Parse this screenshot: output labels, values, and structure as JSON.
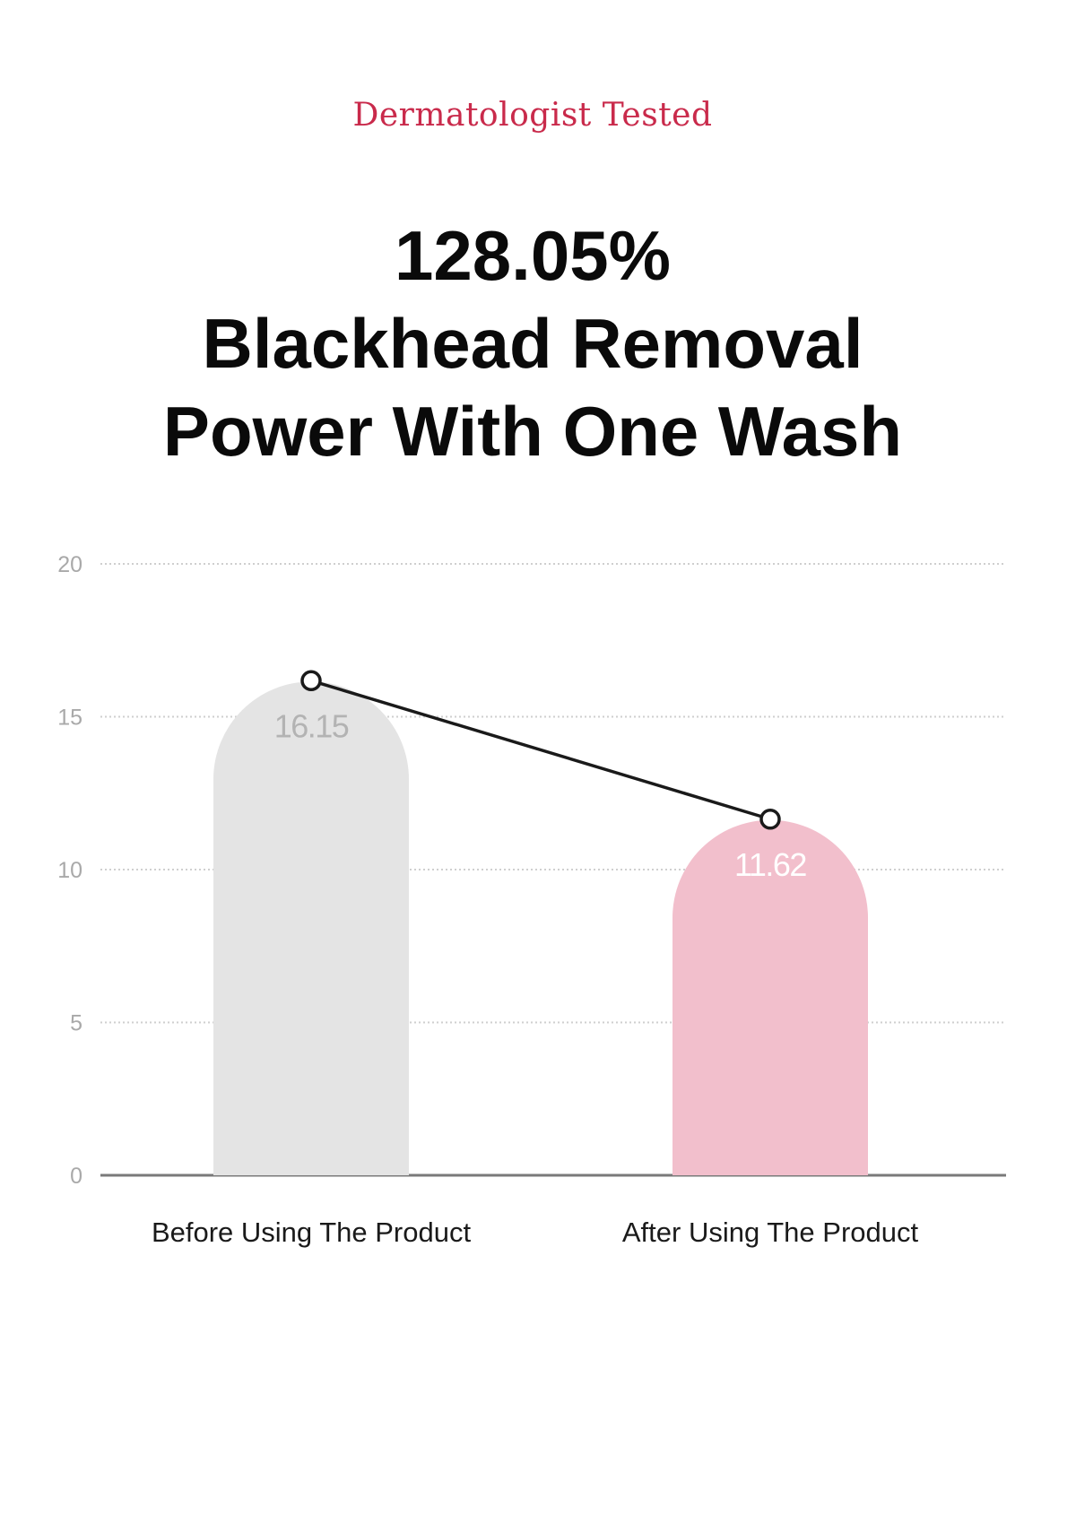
{
  "header": {
    "eyebrow": "Dermatologist Tested",
    "headline_lines": [
      "128.05%",
      "Blackhead Removal",
      "Power With One Wash"
    ]
  },
  "colors": {
    "eyebrow": "#c92a4b",
    "bar_before": "#e4e4e4",
    "bar_after": "#f2bfcc",
    "line": "#1a1a1a",
    "label_before": "#b3b3b3",
    "label_after": "#ffffff"
  },
  "chart_data": {
    "type": "bar",
    "categories": [
      "Before Using The Product",
      "After Using The Product"
    ],
    "values": [
      16.15,
      11.62
    ],
    "data_labels": [
      "16.15",
      "11.62"
    ],
    "line_overlay": true,
    "ylim": [
      0,
      20
    ],
    "yticks": [
      0,
      5,
      10,
      15,
      20
    ],
    "grid": true,
    "title": "",
    "xlabel": "",
    "ylabel": ""
  }
}
